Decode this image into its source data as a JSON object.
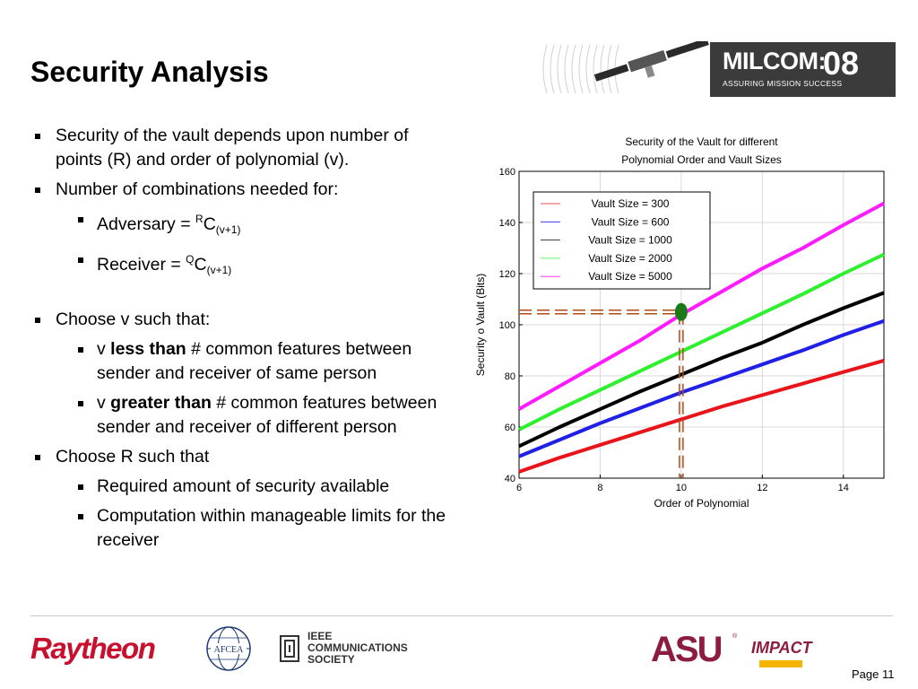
{
  "slide": {
    "title": "Security Analysis",
    "page": "Page 11"
  },
  "header_logo": {
    "main": "MILCOM:",
    "year": "08",
    "tagline": "ASSURING MISSION SUCCESS"
  },
  "bullets": {
    "b1": "Security of the vault depends upon number of points (R) and order of polynomial (v).",
    "b2": "Number of combinations needed for:",
    "b2_adv_label": "Adversary = ",
    "b2_adv_sup": "R",
    "b2_adv_c": "C",
    "b2_adv_sub": "(v+1)",
    "b2_rec_label": "Receiver = ",
    "b2_rec_sup": "Q",
    "b2_rec_c": "C",
    "b2_rec_sub": "(v+1)",
    "b3": "Choose v such that:",
    "b3a_v": "v ",
    "b3a_bold": "less than",
    "b3a_rest": " # common features between sender and receiver of same person",
    "b3b_v": "v ",
    "b3b_bold": "greater than",
    "b3b_rest": " # common features between sender and receiver of different person",
    "b4": "Choose R such that",
    "b4a": "Required amount of security available",
    "b4b": "Computation within manageable limits for the receiver"
  },
  "chart_data": {
    "type": "line",
    "title_line1": "Security of the Vault for different",
    "title_line2": "Polynomial Order and Vault Sizes",
    "xlabel": "Order of Polynomial",
    "ylabel": "Security o Vault (Bits)",
    "xlim": [
      6,
      15
    ],
    "ylim": [
      40,
      160
    ],
    "xticks": [
      6,
      8,
      10,
      12,
      14
    ],
    "yticks": [
      40,
      60,
      80,
      100,
      120,
      140,
      160
    ],
    "grid": true,
    "legend_position": "top-left",
    "x": [
      6,
      7,
      8,
      9,
      10,
      11,
      12,
      13,
      14,
      15
    ],
    "series": [
      {
        "name": "Vault Size = 300",
        "color": "#e8141a",
        "values": [
          42.5,
          48,
          53,
          58,
          63,
          68,
          72.5,
          77,
          81.5,
          86
        ]
      },
      {
        "name": "Vault Size = 600",
        "color": "#1f1fe6",
        "values": [
          48.5,
          55,
          61.5,
          67.5,
          73.5,
          79,
          84.5,
          90,
          96,
          101.5
        ]
      },
      {
        "name": "Vault Size = 1000",
        "color": "#000000",
        "values": [
          52.5,
          60,
          67,
          74,
          80.5,
          87,
          93,
          100,
          106.5,
          112.5
        ]
      },
      {
        "name": "Vault Size = 2000",
        "color": "#2ef02e",
        "values": [
          59,
          67,
          74.5,
          82,
          89.5,
          97,
          104.5,
          112,
          120,
          127.5
        ]
      },
      {
        "name": "Vault Size = 5000",
        "color": "#ff1aff",
        "values": [
          67,
          76,
          85,
          94,
          104,
          113,
          122,
          130,
          139,
          147.5
        ]
      }
    ],
    "highlight": {
      "x": 10,
      "y": 105,
      "color": "#1a7a1a",
      "guide_color": "#b04a1a"
    }
  }
}
